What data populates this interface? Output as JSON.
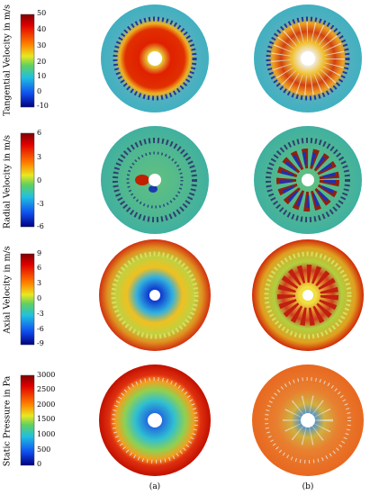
{
  "colorbars": [
    {
      "title": "Tangential Velocity in m/s",
      "ticks": [
        "50",
        "40",
        "30",
        "20",
        "10",
        "0",
        "-10"
      ]
    },
    {
      "title": "Radial Velocity in m/s",
      "ticks": [
        "6",
        "3",
        "0",
        "-3",
        "-6"
      ]
    },
    {
      "title": "Axial Velocity in m/s",
      "ticks": [
        "9",
        "6",
        "3",
        "0",
        "-3",
        "-6",
        "-9"
      ]
    },
    {
      "title": "Static Pressure in Pa",
      "ticks": [
        "3000",
        "2500",
        "2000",
        "1500",
        "1000",
        "500",
        "0"
      ]
    }
  ],
  "column_labels": [
    "(a)",
    "(b)"
  ],
  "colors": {
    "red": "#c80000",
    "orange": "#f07010",
    "yellow": "#e8e020",
    "green": "#60c050",
    "cyan": "#40c0d0",
    "blue": "#1060e0",
    "navy": "#0a1a8c"
  }
}
